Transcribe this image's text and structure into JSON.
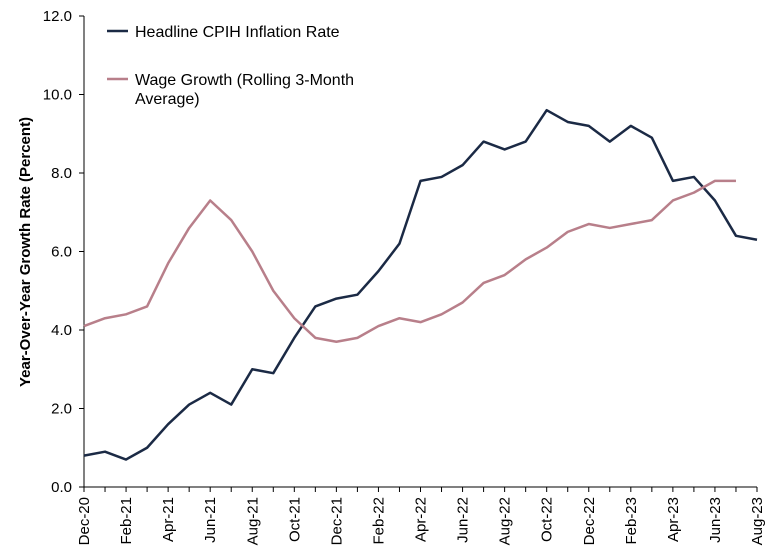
{
  "chart_data": {
    "type": "line",
    "title": "",
    "xlabel": "",
    "ylabel": "Year-Over-Year Growth Rate (Percent)",
    "ylim": [
      0,
      12
    ],
    "yticks": [
      "0.0",
      "2.0",
      "4.0",
      "6.0",
      "8.0",
      "10.0",
      "12.0"
    ],
    "grid": false,
    "legend_position": "top-left",
    "x": [
      "Dec-20",
      "Jan-21",
      "Feb-21",
      "Mar-21",
      "Apr-21",
      "May-21",
      "Jun-21",
      "Jul-21",
      "Aug-21",
      "Sep-21",
      "Oct-21",
      "Nov-21",
      "Dec-21",
      "Jan-22",
      "Feb-22",
      "Mar-22",
      "Apr-22",
      "May-22",
      "Jun-22",
      "Jul-22",
      "Aug-22",
      "Sep-22",
      "Oct-22",
      "Nov-22",
      "Dec-22",
      "Jan-23",
      "Feb-23",
      "Mar-23",
      "Apr-23",
      "May-23",
      "Jun-23",
      "Jul-23",
      "Aug-23"
    ],
    "xtick_labels": [
      "Dec-20",
      "Feb-21",
      "Apr-21",
      "Jun-21",
      "Aug-21",
      "Oct-21",
      "Dec-21",
      "Feb-22",
      "Apr-22",
      "Jun-22",
      "Aug-22",
      "Oct-22",
      "Dec-22",
      "Feb-23",
      "Apr-23",
      "Jun-23",
      "Aug-23"
    ],
    "series": [
      {
        "name": "Headline CPIH Inflation Rate",
        "color": "#1b2a45",
        "values": [
          0.8,
          0.9,
          0.7,
          1.0,
          1.6,
          2.1,
          2.4,
          2.1,
          3.0,
          2.9,
          3.8,
          4.6,
          4.8,
          4.9,
          5.5,
          6.2,
          7.8,
          7.9,
          8.2,
          8.8,
          8.6,
          8.8,
          9.6,
          9.3,
          9.2,
          8.8,
          9.2,
          8.9,
          7.8,
          7.9,
          7.3,
          6.4,
          6.3
        ]
      },
      {
        "name": "Wage Growth (Rolling 3-Month Average)",
        "color": "#b87f8a",
        "values": [
          4.1,
          4.3,
          4.4,
          4.6,
          5.7,
          6.6,
          7.3,
          6.8,
          6.0,
          5.0,
          4.3,
          3.8,
          3.7,
          3.8,
          4.1,
          4.3,
          4.2,
          4.4,
          4.7,
          5.2,
          5.4,
          5.8,
          6.1,
          6.5,
          6.7,
          6.6,
          6.7,
          6.8,
          7.3,
          7.5,
          7.8,
          7.8,
          null
        ]
      }
    ],
    "legend": {
      "entries": [
        {
          "lines": [
            "Headline CPIH Inflation Rate"
          ]
        },
        {
          "lines": [
            "Wage Growth (Rolling 3-Month",
            "Average)"
          ]
        }
      ]
    }
  }
}
